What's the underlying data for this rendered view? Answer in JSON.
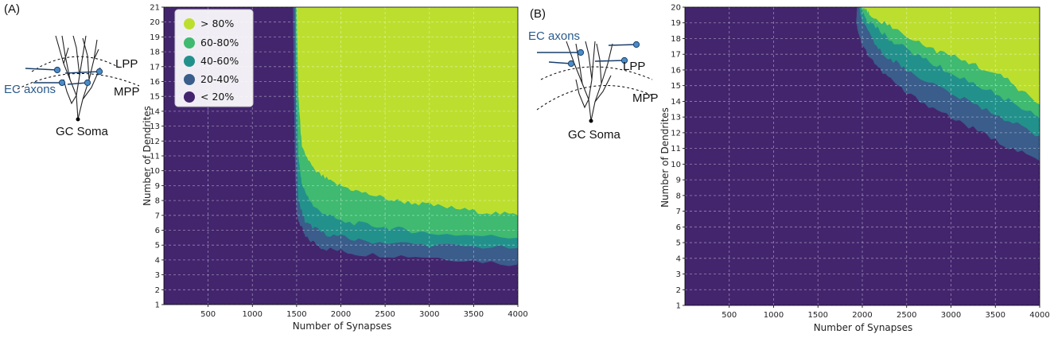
{
  "colors": {
    "lt20": "#43256e",
    "b20_40": "#3a5d8b",
    "b40_60": "#23918b",
    "b60_80": "#3fba70",
    "gt80": "#bcdf2f",
    "axon": "#1a3f6a",
    "node": "#4a8cc6"
  },
  "legend": {
    "items": [
      {
        "key": "gt80",
        "label": "> 80%"
      },
      {
        "key": "b60_80",
        "label": "60-80%"
      },
      {
        "key": "b40_60",
        "label": "40-60%"
      },
      {
        "key": "b20_40",
        "label": "20-40%"
      },
      {
        "key": "lt20",
        "label": "< 20%"
      }
    ]
  },
  "panels": [
    {
      "label": "(A)",
      "inset": {
        "ec_axons": "EC axons",
        "lpp": "LPP",
        "mpp": "MPP",
        "soma": "GC Soma"
      }
    },
    {
      "label": "(B)",
      "inset": {
        "ec_axons": "EC axons",
        "lpp": "LPP",
        "mpp": "MPP",
        "soma": "GC Soma"
      }
    }
  ],
  "chart_data": [
    {
      "type": "heatmap",
      "panel": "(A)",
      "title": "",
      "xlabel": "Number of Synapses",
      "ylabel": "Number of Dendrites",
      "xlim": [
        0,
        4000
      ],
      "ylim": [
        1,
        21
      ],
      "xticks": [
        500,
        1000,
        1500,
        2000,
        2500,
        3000,
        3500,
        4000
      ],
      "yticks": [
        1,
        2,
        3,
        4,
        5,
        6,
        7,
        8,
        9,
        10,
        11,
        12,
        13,
        14,
        15,
        16,
        17,
        18,
        19,
        20,
        21
      ],
      "grid": true,
      "legend_position": "top-left",
      "levels": [
        "< 20%",
        "20-40%",
        "40-60%",
        "60-80%",
        "> 80%"
      ],
      "boundaries": [
        {
          "level": "20-40%",
          "points": [
            [
              1460,
              21
            ],
            [
              1470,
              15
            ],
            [
              1480,
              11
            ],
            [
              1500,
              7
            ],
            [
              1600,
              5.5
            ],
            [
              1800,
              4.8
            ],
            [
              2200,
              4.4
            ],
            [
              3000,
              4.2
            ],
            [
              4000,
              3.7
            ]
          ]
        },
        {
          "level": "40-60%",
          "points": [
            [
              1480,
              21
            ],
            [
              1490,
              15
            ],
            [
              1500,
              11
            ],
            [
              1520,
              8
            ],
            [
              1600,
              6.5
            ],
            [
              1800,
              5.8
            ],
            [
              2200,
              5.3
            ],
            [
              3000,
              5.0
            ],
            [
              4000,
              4.8
            ]
          ]
        },
        {
          "level": "60-80%",
          "points": [
            [
              1490,
              21
            ],
            [
              1500,
              15
            ],
            [
              1520,
              11
            ],
            [
              1560,
              9
            ],
            [
              1700,
              7.5
            ],
            [
              2000,
              6.6
            ],
            [
              2500,
              6.2
            ],
            [
              3000,
              5.8
            ],
            [
              4000,
              5.5
            ]
          ]
        },
        {
          "level": "> 80%",
          "points": [
            [
              1500,
              21
            ],
            [
              1520,
              15
            ],
            [
              1560,
              11.5
            ],
            [
              1700,
              10
            ],
            [
              1900,
              9.2
            ],
            [
              2200,
              8.6
            ],
            [
              2600,
              8.0
            ],
            [
              3000,
              7.7
            ],
            [
              3500,
              7.3
            ],
            [
              4000,
              7.0
            ]
          ]
        }
      ]
    },
    {
      "type": "heatmap",
      "panel": "(B)",
      "title": "",
      "xlabel": "Number of Synapses",
      "ylabel": "Number of Dendrites",
      "xlim": [
        0,
        4000
      ],
      "ylim": [
        1,
        20
      ],
      "xticks": [
        500,
        1000,
        1500,
        2000,
        2500,
        3000,
        3500,
        4000
      ],
      "yticks": [
        1,
        2,
        3,
        4,
        5,
        6,
        7,
        8,
        9,
        10,
        11,
        12,
        13,
        14,
        15,
        16,
        17,
        18,
        19,
        20
      ],
      "grid": true,
      "levels": [
        "< 20%",
        "20-40%",
        "40-60%",
        "60-80%",
        "> 80%"
      ],
      "boundaries": [
        {
          "level": "20-40%",
          "points": [
            [
              1940,
              20
            ],
            [
              1930,
              19
            ],
            [
              2000,
              17.5
            ],
            [
              2200,
              16
            ],
            [
              2500,
              14.5
            ],
            [
              3000,
              13
            ],
            [
              3500,
              11.5
            ],
            [
              4000,
              10.2
            ]
          ]
        },
        {
          "level": "40-60%",
          "points": [
            [
              1960,
              20
            ],
            [
              2000,
              19
            ],
            [
              2200,
              17.2
            ],
            [
              2500,
              16
            ],
            [
              3000,
              14.5
            ],
            [
              3500,
              13.2
            ],
            [
              4000,
              11.8
            ]
          ]
        },
        {
          "level": "60-80%",
          "points": [
            [
              1980,
              20
            ],
            [
              2050,
              19.2
            ],
            [
              2300,
              18
            ],
            [
              2600,
              17
            ],
            [
              3000,
              15.8
            ],
            [
              3500,
              14.5
            ],
            [
              4000,
              13.0
            ]
          ]
        },
        {
          "level": "> 80%",
          "points": [
            [
              2000,
              20
            ],
            [
              2100,
              19.5
            ],
            [
              2400,
              18.5
            ],
            [
              2800,
              17.3
            ],
            [
              3200,
              16.5
            ],
            [
              3600,
              15.5
            ],
            [
              4000,
              13.8
            ]
          ]
        }
      ]
    }
  ]
}
